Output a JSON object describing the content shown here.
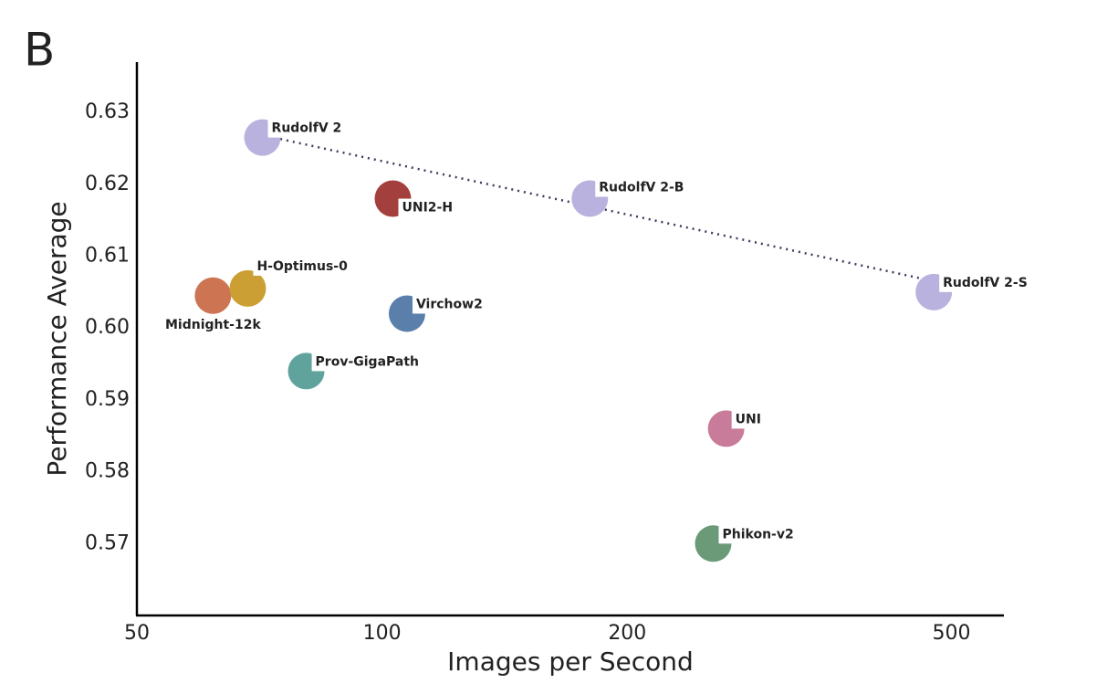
{
  "chart_data": {
    "type": "scatter",
    "panel_label": "B",
    "x_label": "Images per Second",
    "y_label": "Performance Average",
    "log_x": true,
    "xlim": [
      50,
      580
    ],
    "ylim": [
      0.56,
      0.637
    ],
    "xticks": [
      50,
      100,
      200,
      500
    ],
    "yticks": [
      0.57,
      0.58,
      0.59,
      {
        "value": 0.6,
        "label": "0.60"
      },
      0.61,
      0.62,
      0.63
    ],
    "points": [
      {
        "label": "RudolfV 2",
        "x": 71.3,
        "y": 0.6265,
        "color": "#b9b2de"
      },
      {
        "label": "UNI2-H",
        "x": 103.1,
        "y": 0.618,
        "color": "#a33f3c"
      },
      {
        "label": "RudolfV 2-B",
        "x": 179.9,
        "y": 0.618,
        "color": "#b9b2de"
      },
      {
        "label": "RudolfV 2-S",
        "x": 475.7,
        "y": 0.605,
        "color": "#b9b2de"
      },
      {
        "label": "Midnight-12k",
        "x": 62,
        "y": 0.6045,
        "color": "#cd7453"
      },
      {
        "label": "H-Optimus-0",
        "x": 68.4,
        "y": 0.6055,
        "color": "#cc9f35"
      },
      {
        "label": "Virchow2",
        "x": 107.3,
        "y": 0.602,
        "color": "#5a7fab"
      },
      {
        "label": "Prov-GigaPath",
        "x": 80.7,
        "y": 0.594,
        "color": "#5fa39c"
      },
      {
        "label": "UNI",
        "x": 264.5,
        "y": 0.586,
        "color": "#c97b9a"
      },
      {
        "label": "Phikon-v2",
        "x": 255,
        "y": 0.57,
        "color": "#6b9a79"
      }
    ],
    "trend": {
      "x": [
        75,
        480.7
      ],
      "y": [
        0.6263,
        0.6064
      ],
      "color": "#3d3a5c"
    }
  }
}
